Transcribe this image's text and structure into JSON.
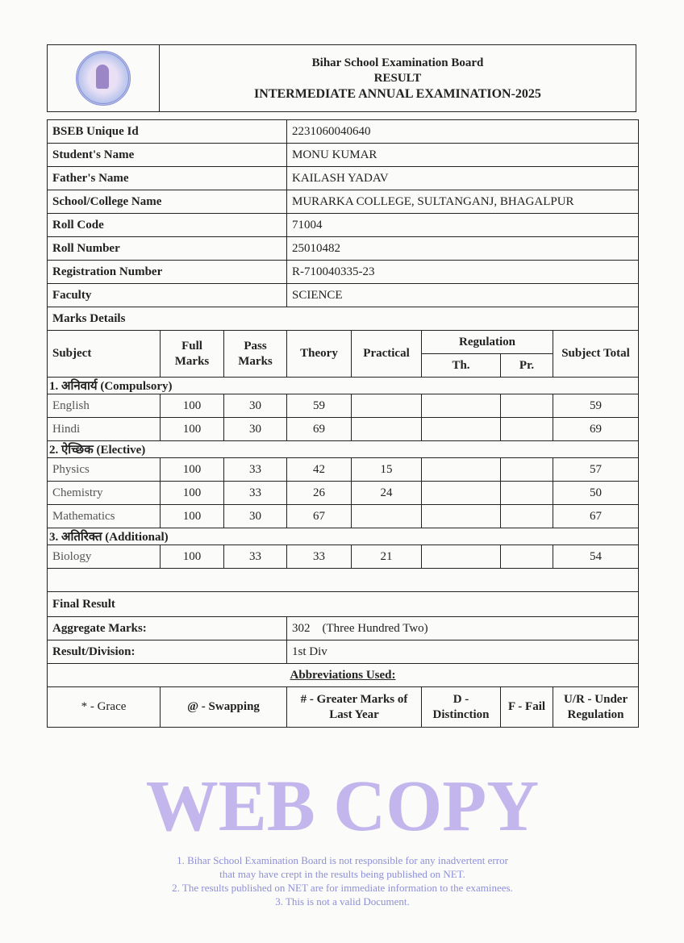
{
  "header": {
    "board": "Bihar School Examination Board",
    "result": "RESULT",
    "exam": "INTERMEDIATE ANNUAL EXAMINATION-2025"
  },
  "info": [
    {
      "label": "BSEB Unique Id",
      "value": "2231060040640"
    },
    {
      "label": "Student's Name",
      "value": "MONU KUMAR"
    },
    {
      "label": "Father's Name",
      "value": "KAILASH YADAV"
    },
    {
      "label": "School/College Name",
      "value": "MURARKA COLLEGE, SULTANGANJ, BHAGALPUR"
    },
    {
      "label": "Roll Code",
      "value": "71004"
    },
    {
      "label": "Roll Number",
      "value": "25010482"
    },
    {
      "label": "Registration Number",
      "value": "R-710040335-23"
    },
    {
      "label": "Faculty",
      "value": "SCIENCE"
    }
  ],
  "marks": {
    "title": "Marks Details",
    "headers": {
      "subject": "Subject",
      "full": "Full Marks",
      "pass": "Pass Marks",
      "theory": "Theory",
      "practical": "Practical",
      "regulation": "Regulation",
      "th": "Th.",
      "pr": "Pr.",
      "total": "Subject Total"
    },
    "sections": [
      {
        "title": "1. अनिवार्य (Compulsory)",
        "rows": [
          {
            "subject": "English",
            "full": "100",
            "pass": "30",
            "theory": "59",
            "practical": "",
            "th": "",
            "pr": "",
            "total": "59"
          },
          {
            "subject": "Hindi",
            "full": "100",
            "pass": "30",
            "theory": "69",
            "practical": "",
            "th": "",
            "pr": "",
            "total": "69"
          }
        ]
      },
      {
        "title": "2. ऐच्छिक (Elective)",
        "rows": [
          {
            "subject": "Physics",
            "full": "100",
            "pass": "33",
            "theory": "42",
            "practical": "15",
            "th": "",
            "pr": "",
            "total": "57"
          },
          {
            "subject": "Chemistry",
            "full": "100",
            "pass": "33",
            "theory": "26",
            "practical": "24",
            "th": "",
            "pr": "",
            "total": "50"
          },
          {
            "subject": "Mathematics",
            "full": "100",
            "pass": "30",
            "theory": "67",
            "practical": "",
            "th": "",
            "pr": "",
            "total": "67"
          }
        ]
      },
      {
        "title": "3. अतिरिक्त (Additional)",
        "rows": [
          {
            "subject": "Biology",
            "full": "100",
            "pass": "33",
            "theory": "33",
            "practical": "21",
            "th": "",
            "pr": "",
            "total": "54"
          }
        ]
      }
    ]
  },
  "final": {
    "title": "Final Result",
    "aggregate_label": "Aggregate Marks:",
    "aggregate_value": "302    (Three Hundred Two)",
    "division_label": "Result/Division:",
    "division_value": "1st Div"
  },
  "abbreviations": {
    "title": "Abbreviations Used:",
    "items": [
      "* - Grace",
      "@ - Swapping",
      "# - Greater Marks of Last Year",
      "D - Distinction",
      "F - Fail",
      "U/R - Under Regulation"
    ]
  },
  "watermark": {
    "text": "WEB COPY",
    "notes": [
      "1. Bihar School Examination Board is not responsible for any inadvertent error",
      "that may have crept in the results being published on NET.",
      "2. The results published on NET are for immediate information to the examinees.",
      "3. This is not a valid Document."
    ]
  }
}
